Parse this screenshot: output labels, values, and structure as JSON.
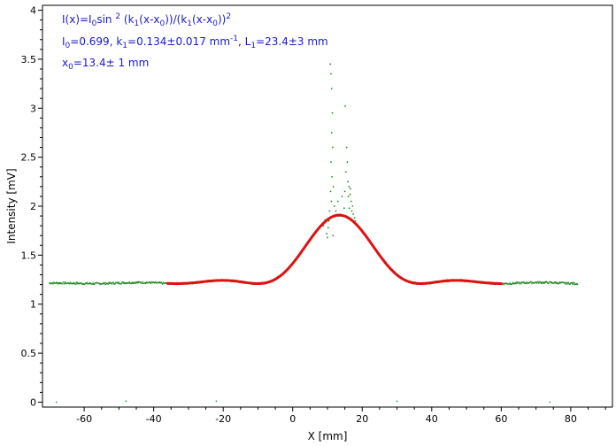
{
  "chart_data": {
    "type": "scatter",
    "title": "",
    "xlabel": "X [mm]",
    "ylabel": "Intensity [mV]",
    "xlim": [
      -72,
      92
    ],
    "ylim": [
      -0.05,
      4.05
    ],
    "x_ticks": [
      -60,
      -40,
      -20,
      0,
      20,
      40,
      60,
      80
    ],
    "y_ticks": [
      0,
      0.5,
      1,
      1.5,
      2,
      2.5,
      3,
      3.5,
      4
    ],
    "x_tick_labels": [
      "-60",
      "-40",
      "-20",
      "0",
      "20",
      "40",
      "60",
      "80"
    ],
    "y_tick_labels": [
      "0",
      "0.5",
      "1",
      "1.5",
      "2",
      "2.5",
      "3",
      "3.5",
      "4"
    ],
    "grid": false,
    "annotations": {
      "line1": {
        "a": "I(x)=I",
        "a_sub": "0",
        "b": "sin ",
        "b_sup": "2",
        "c": " (k",
        "c_sub": "1",
        "d": "(x-x",
        "d_sub": "0",
        "e": "))/(k",
        "e_sub": "1",
        "f": "(x-x",
        "f_sub": "0",
        "g": "))",
        "g_sup": "2"
      },
      "line2": {
        "a": "I",
        "a_sub": "0",
        "b": "=0.699,  k",
        "b_sub": "1",
        "c": "=0.134±0.017 mm",
        "c_sup": "-1",
        "d": ",   L",
        "d_sub": "1",
        "e": "=23.4±3 mm"
      },
      "line3": {
        "a": "x",
        "a_sub": "0",
        "b": "=13.4±  1 mm"
      }
    },
    "series": [
      {
        "kind": "scatter-dense",
        "color": "#1f8a1f",
        "baseline": 1.21,
        "x_range": [
          -70,
          82
        ]
      },
      {
        "kind": "scatter-spike",
        "color": "#1f8a1f",
        "points": [
          [
            10.8,
            3.45
          ],
          [
            11.0,
            3.35
          ],
          [
            11.2,
            3.2
          ],
          [
            11.4,
            2.95
          ],
          [
            11.2,
            2.75
          ],
          [
            11.5,
            2.6
          ],
          [
            11.0,
            2.45
          ],
          [
            11.3,
            2.3
          ],
          [
            10.9,
            2.15
          ],
          [
            11.1,
            2.05
          ],
          [
            10.6,
            1.95
          ],
          [
            10.4,
            1.85
          ],
          [
            10.2,
            1.78
          ],
          [
            9.8,
            1.72
          ],
          [
            11.6,
            1.7
          ],
          [
            10.0,
            1.68
          ],
          [
            11.9,
            1.9
          ],
          [
            12.0,
            2.0
          ],
          [
            11.7,
            2.2
          ],
          [
            15.1,
            3.02
          ],
          [
            15.5,
            2.6
          ],
          [
            15.7,
            2.45
          ],
          [
            15.3,
            2.35
          ],
          [
            15.9,
            2.25
          ],
          [
            16.2,
            2.2
          ],
          [
            16.0,
            2.1
          ],
          [
            16.5,
            2.12
          ],
          [
            16.8,
            2.05
          ],
          [
            16.3,
            1.98
          ],
          [
            17.0,
            1.95
          ],
          [
            17.4,
            1.92
          ],
          [
            17.8,
            1.88
          ],
          [
            15.0,
            2.15
          ],
          [
            14.8,
            1.98
          ],
          [
            16.6,
            2.18
          ],
          [
            17.2,
            2.0
          ],
          [
            18.0,
            1.85
          ],
          [
            8.8,
            1.8
          ],
          [
            9.3,
            1.86
          ],
          [
            12.4,
            1.95
          ],
          [
            13.0,
            2.05
          ],
          [
            14.2,
            2.1
          ]
        ]
      },
      {
        "kind": "scatter-outliers",
        "color": "#1f8a1f",
        "points": [
          [
            -68,
            0.0
          ],
          [
            -48,
            0.01
          ],
          [
            -22,
            0.01
          ],
          [
            30,
            0.01
          ],
          [
            74,
            0.0
          ]
        ]
      },
      {
        "kind": "fit",
        "color": "#dd1111",
        "I0": 0.699,
        "k1": 0.134,
        "x0": 13.4,
        "offset": 1.21,
        "x_range": [
          -36,
          60
        ]
      }
    ]
  }
}
